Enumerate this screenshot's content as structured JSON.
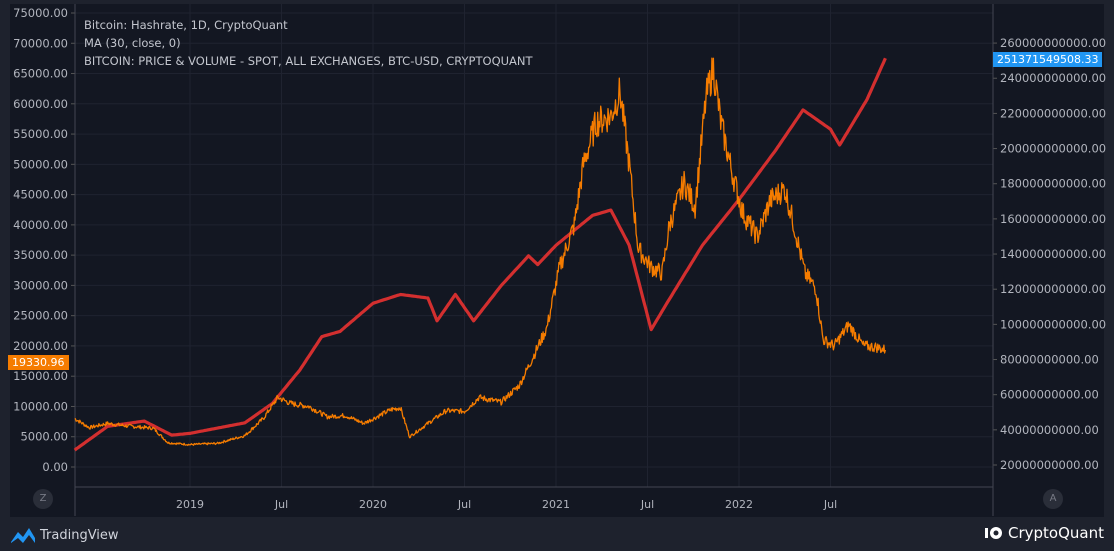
{
  "legend": [
    "Bitcoin: Hashrate, 1D, CryptoQuant",
    "MA (30, close, 0)",
    "BITCOIN: PRICE & VOLUME - SPOT, ALL EXCHANGES, BTC-USD, CRYPTOQUANT"
  ],
  "current_price_label": "19330.96",
  "current_hashrate_label": "251371549508.33",
  "axis_buttons": {
    "left": "Z",
    "right": "A"
  },
  "footer": {
    "left": "TradingView",
    "right": "CryptoQuant"
  },
  "colors": {
    "price": "#f57c00",
    "hashrate_ma": "#d32f2f",
    "price_badge": "#f57c00",
    "hashrate_badge": "#2196f3"
  },
  "chart_data": {
    "type": "line",
    "x_ticks": [
      {
        "t": 2019,
        "label": "2019"
      },
      {
        "t": 2019.5,
        "label": "Jul"
      },
      {
        "t": 2020,
        "label": "2020"
      },
      {
        "t": 2020.5,
        "label": "Jul"
      },
      {
        "t": 2021,
        "label": "2021"
      },
      {
        "t": 2021.5,
        "label": "Jul"
      },
      {
        "t": 2022,
        "label": "2022"
      },
      {
        "t": 2022.5,
        "label": "Jul"
      }
    ],
    "left_axis": {
      "ylim": [
        0,
        75000
      ],
      "ticks": [
        "0.00",
        "5000.00",
        "10000.00",
        "15000.00",
        "20000.00",
        "25000.00",
        "30000.00",
        "35000.00",
        "40000.00",
        "45000.00",
        "50000.00",
        "55000.00",
        "60000.00",
        "65000.00",
        "70000.00",
        "75000.00"
      ]
    },
    "right_axis": {
      "ylim": [
        20000000000,
        260000000000
      ],
      "ticks": [
        "20000000000.00",
        "40000000000.00",
        "60000000000.00",
        "80000000000.00",
        "100000000000.00",
        "120000000000.00",
        "140000000000.00",
        "160000000000.00",
        "180000000000.00",
        "200000000000.00",
        "220000000000.00",
        "240000000000.00",
        "260000000000.00"
      ]
    },
    "series": [
      {
        "name": "BTC-USD price",
        "axis": "left",
        "points": [
          [
            2018.37,
            8000
          ],
          [
            2018.45,
            6500
          ],
          [
            2018.55,
            7200
          ],
          [
            2018.65,
            6800
          ],
          [
            2018.8,
            6400
          ],
          [
            2018.88,
            4000
          ],
          [
            2019.0,
            3700
          ],
          [
            2019.15,
            3900
          ],
          [
            2019.3,
            5200
          ],
          [
            2019.4,
            8000
          ],
          [
            2019.48,
            11500
          ],
          [
            2019.55,
            10500
          ],
          [
            2019.65,
            10000
          ],
          [
            2019.75,
            8300
          ],
          [
            2019.85,
            8500
          ],
          [
            2019.95,
            7200
          ],
          [
            2020.1,
            9500
          ],
          [
            2020.15,
            9800
          ],
          [
            2020.2,
            5000
          ],
          [
            2020.3,
            7200
          ],
          [
            2020.4,
            9300
          ],
          [
            2020.5,
            9200
          ],
          [
            2020.58,
            11500
          ],
          [
            2020.7,
            10700
          ],
          [
            2020.8,
            13500
          ],
          [
            2020.88,
            18500
          ],
          [
            2020.95,
            23000
          ],
          [
            2021.02,
            33000
          ],
          [
            2021.1,
            40000
          ],
          [
            2021.15,
            50000
          ],
          [
            2021.22,
            57000
          ],
          [
            2021.3,
            58000
          ],
          [
            2021.35,
            62000
          ],
          [
            2021.4,
            50000
          ],
          [
            2021.45,
            36000
          ],
          [
            2021.52,
            33000
          ],
          [
            2021.58,
            32000
          ],
          [
            2021.62,
            40000
          ],
          [
            2021.7,
            47000
          ],
          [
            2021.76,
            43000
          ],
          [
            2021.82,
            61000
          ],
          [
            2021.86,
            66000
          ],
          [
            2021.9,
            57000
          ],
          [
            2021.96,
            49000
          ],
          [
            2022.02,
            42000
          ],
          [
            2022.1,
            38000
          ],
          [
            2022.17,
            44000
          ],
          [
            2022.25,
            46000
          ],
          [
            2022.3,
            40000
          ],
          [
            2022.36,
            32000
          ],
          [
            2022.42,
            29500
          ],
          [
            2022.46,
            21000
          ],
          [
            2022.52,
            20000
          ],
          [
            2022.6,
            23500
          ],
          [
            2022.68,
            20000
          ],
          [
            2022.75,
            19800
          ],
          [
            2022.8,
            19330
          ]
        ]
      },
      {
        "name": "Hashrate MA(30)",
        "axis": "right",
        "points": [
          [
            2018.37,
            28500000000
          ],
          [
            2018.55,
            42000000000
          ],
          [
            2018.75,
            45000000000
          ],
          [
            2018.9,
            37000000000
          ],
          [
            2019.0,
            38000000000
          ],
          [
            2019.3,
            44000000000
          ],
          [
            2019.45,
            55000000000
          ],
          [
            2019.6,
            74000000000
          ],
          [
            2019.72,
            93000000000
          ],
          [
            2019.82,
            96000000000
          ],
          [
            2020.0,
            112000000000
          ],
          [
            2020.15,
            117000000000
          ],
          [
            2020.3,
            115000000000
          ],
          [
            2020.35,
            102000000000
          ],
          [
            2020.45,
            117000000000
          ],
          [
            2020.55,
            102000000000
          ],
          [
            2020.7,
            122000000000
          ],
          [
            2020.85,
            139000000000
          ],
          [
            2020.9,
            134000000000
          ],
          [
            2021.0,
            145000000000
          ],
          [
            2021.2,
            162000000000
          ],
          [
            2021.3,
            165000000000
          ],
          [
            2021.4,
            145000000000
          ],
          [
            2021.52,
            97000000000
          ],
          [
            2021.6,
            111000000000
          ],
          [
            2021.8,
            145000000000
          ],
          [
            2022.0,
            171000000000
          ],
          [
            2022.2,
            199000000000
          ],
          [
            2022.35,
            222000000000
          ],
          [
            2022.5,
            211000000000
          ],
          [
            2022.55,
            202000000000
          ],
          [
            2022.7,
            228000000000
          ],
          [
            2022.8,
            251371549508
          ]
        ]
      }
    ]
  }
}
